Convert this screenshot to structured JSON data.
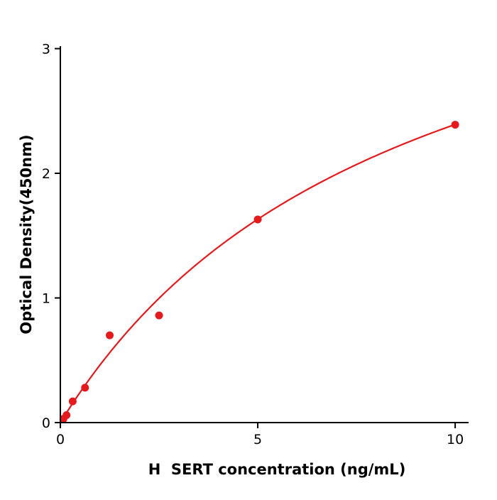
{
  "chart_data": {
    "type": "scatter",
    "title": "",
    "xlabel": "H  SERT concentration (ng/mL)",
    "ylabel": "Optical Density(450nm)",
    "x": [
      0.078,
      0.156,
      0.313,
      0.625,
      1.25,
      2.5,
      5,
      10
    ],
    "y": [
      0.03,
      0.06,
      0.17,
      0.28,
      0.7,
      0.86,
      1.63,
      2.39
    ],
    "xticks": [
      0,
      5,
      10
    ],
    "yticks": [
      0,
      1,
      2,
      3
    ],
    "xlim": [
      0,
      10.34
    ],
    "ylim": [
      0,
      3.02
    ],
    "grid": false,
    "legend": null,
    "point_color": "#e41a1c",
    "line_color": "#e41a1c",
    "axis_color": "#000000",
    "point_radius": 5.5,
    "fit": {
      "model": "michaelis_menten",
      "vmax": 4.48,
      "km": 8.73,
      "x_start": 0.04,
      "x_end": 10
    }
  }
}
